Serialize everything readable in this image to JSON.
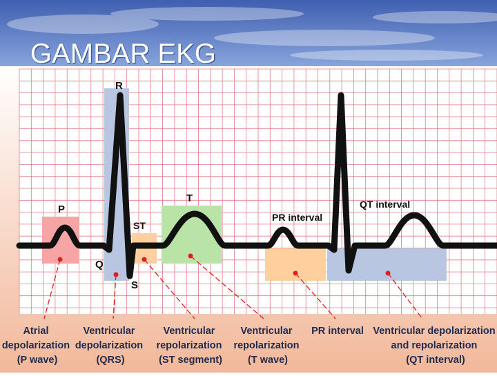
{
  "slide": {
    "title": "GAMBAR EKG"
  },
  "colors": {
    "sky_top": "#3f5fb0",
    "sky_bottom": "#8aa7dd",
    "bg_bottom": "#f2b89a",
    "grid_line": "#e07b86",
    "grid_bg": "#ffffff",
    "trace": "#111111",
    "qrs_band": "#b9c6e2",
    "p_band": "#f7a4a4",
    "st_band": "#ffcf9e",
    "t_band": "#b9e3a7",
    "pr_band": "#ffcf9e",
    "qt_band": "#b9c6e2",
    "marker": "#e02020"
  },
  "waves": {
    "P": "P",
    "Q": "Q",
    "R": "R",
    "S": "S",
    "ST": "ST",
    "T": "T",
    "PR": "PR interval",
    "QT": "QT interval"
  },
  "captions": [
    {
      "lines": [
        "Atrial",
        "depolarization",
        "(P wave)"
      ]
    },
    {
      "lines": [
        "Ventricular",
        "depolarization",
        "(QRS)"
      ]
    },
    {
      "lines": [
        "Ventricular",
        "repolarization",
        "(ST segment)"
      ]
    },
    {
      "lines": [
        "Ventricular",
        "repolarization",
        "(T wave)"
      ]
    },
    {
      "lines": [
        "PR interval"
      ]
    },
    {
      "lines": [
        "Ventricular depolarization",
        "and repolarization",
        "(QT interval)"
      ]
    }
  ]
}
